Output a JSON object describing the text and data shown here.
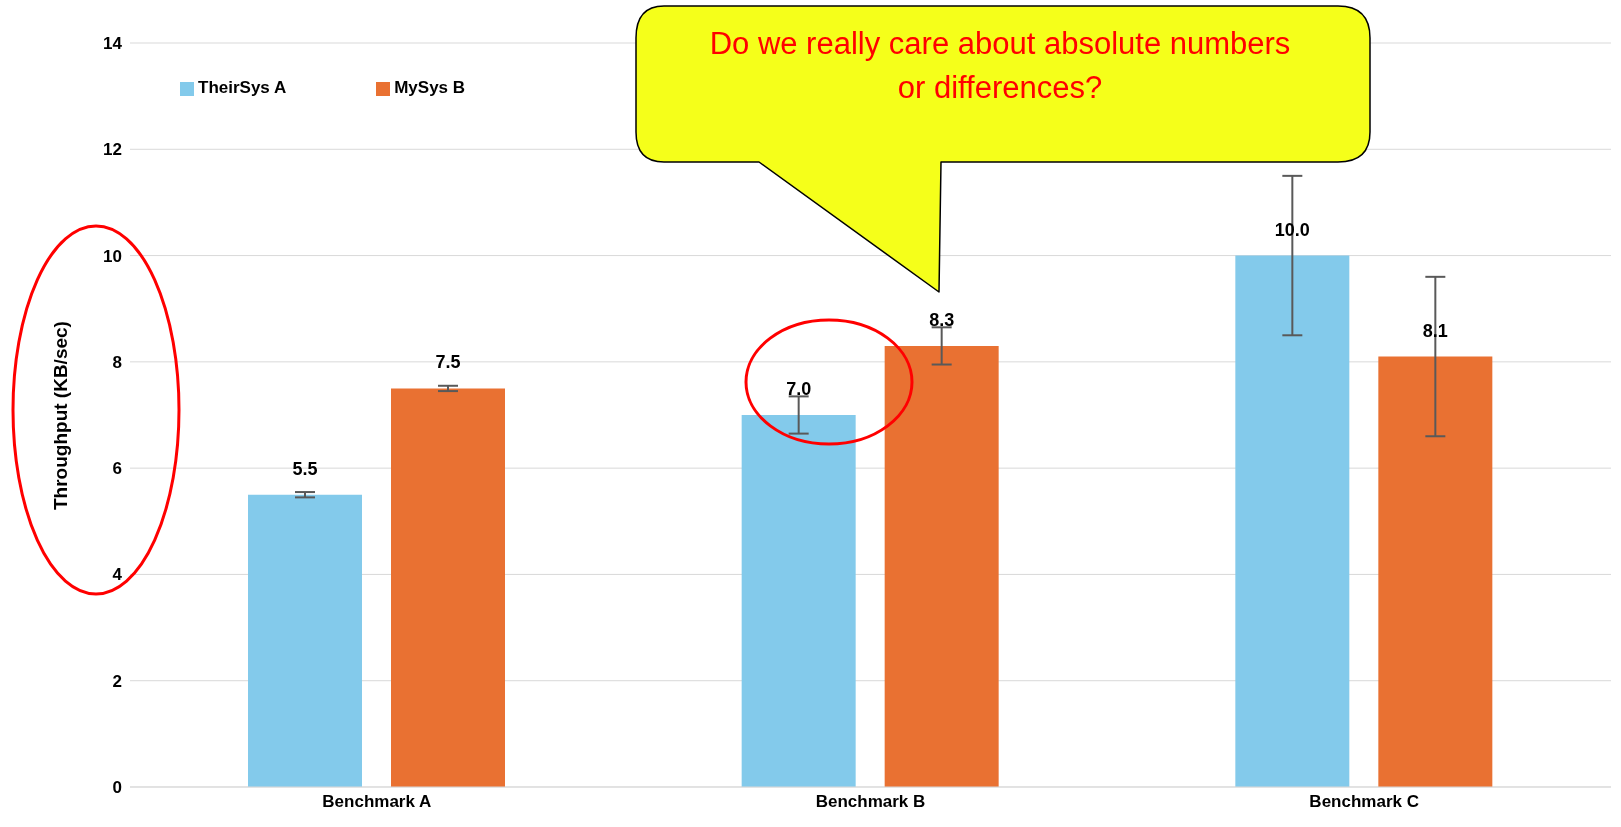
{
  "chart_data": {
    "type": "bar",
    "ylabel": "Throughput (KB/sec)",
    "categories": [
      "Benchmark A",
      "Benchmark B",
      "Benchmark C"
    ],
    "series": [
      {
        "name": "TheirSys A",
        "color": "#83caeb",
        "values": [
          5.5,
          7.0,
          10.0
        ],
        "errors": [
          0.05,
          0.35,
          1.5
        ],
        "value_labels": [
          "5.5",
          "7.0",
          "10.0"
        ]
      },
      {
        "name": "MySys B",
        "color": "#e97132",
        "values": [
          7.5,
          8.3,
          8.1
        ],
        "errors": [
          0.05,
          0.35,
          1.5
        ],
        "value_labels": [
          "7.5",
          "8.3",
          "8.1"
        ]
      }
    ],
    "ylim": [
      0,
      14
    ],
    "yticks": [
      0,
      2,
      4,
      6,
      8,
      10,
      12,
      14
    ],
    "grid": "y",
    "legend": "top left",
    "annotations": [
      "Do we really care about absolute numbers or differences?"
    ]
  }
}
